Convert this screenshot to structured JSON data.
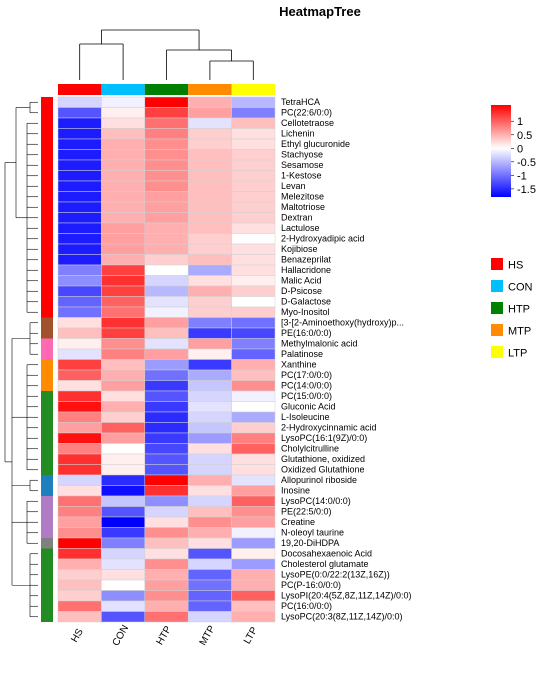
{
  "chart_data": {
    "type": "heatmap",
    "title": "HeatmapTree",
    "columns": [
      "HS",
      "CON",
      "HTP",
      "MTP",
      "LTP"
    ],
    "column_colors": [
      "#ff0000",
      "#00bfff",
      "#008000",
      "#ff8c00",
      "#ffff00"
    ],
    "rows": [
      "TetraHCA",
      "PC(22:6/0:0)",
      "Cellotetraose",
      "Lichenin",
      "Ethyl glucuronide",
      "Stachyose",
      "Sesamose",
      "1-Kestose",
      "Levan",
      "Melezitose",
      "Maltotriose",
      "Dextran",
      "Lactulose",
      "2-Hydroxyadipic acid",
      "Kojibiose",
      "Benazeprilat",
      "Hallacridone",
      "Malic Acid",
      "D-Psicose",
      "D-Galactose",
      "Myo-Inositol",
      "[3-[2-Aminoethoxy(hydroxy)p...",
      "PE(16:0/0:0)",
      "Methylmalonic acid",
      "Palatinose",
      "Xanthine",
      "PC(17:0/0:0)",
      "PC(14:0/0:0)",
      "PC(15:0/0:0)",
      "Gluconic Acid",
      "L-Isoleucine",
      "2-Hydroxycinnamic acid",
      "LysoPC(16:1(9Z)/0:0)",
      "Cholylcitrulline",
      "Glutathione, oxidized",
      "Oxidized Glutathione",
      "Allopurinol riboside",
      "Inosine",
      "LysoPC(14:0/0:0)",
      "PE(22:5/0:0)",
      "Creatine",
      "N-oleoyl taurine",
      "19,20-DiHDPA",
      "Docosahexaenoic Acid",
      "Cholesterol glutamate",
      "LysoPE(0:0/22:2(13Z,16Z))",
      "PC(P-16:0/0:0)",
      "LysoPI(20:4(5Z,8Z,11Z,14Z)/0:0)",
      "PC(16:0/0:0)",
      "LysoPC(20:3(8Z,11Z,14Z)/0:0)"
    ],
    "row_group_colors": [
      "#ff0000",
      "#ff0000",
      "#ff0000",
      "#ff0000",
      "#ff0000",
      "#ff0000",
      "#ff0000",
      "#ff0000",
      "#ff0000",
      "#ff0000",
      "#ff0000",
      "#ff0000",
      "#ff0000",
      "#ff0000",
      "#ff0000",
      "#ff0000",
      "#ff0000",
      "#ff0000",
      "#ff0000",
      "#ff0000",
      "#ff0000",
      "#a0522d",
      "#a0522d",
      "#ff69b4",
      "#ff69b4",
      "#ff8c00",
      "#ff8c00",
      "#ff8c00",
      "#228b22",
      "#228b22",
      "#228b22",
      "#228b22",
      "#228b22",
      "#228b22",
      "#228b22",
      "#228b22",
      "#1e7fbf",
      "#1e7fbf",
      "#b07cc6",
      "#b07cc6",
      "#b07cc6",
      "#b07cc6",
      "#808080",
      "#228b22",
      "#228b22",
      "#228b22",
      "#228b22",
      "#228b22",
      "#228b22",
      "#228b22"
    ],
    "values": [
      [
        -0.3,
        -0.1,
        1.6,
        0.5,
        -0.5
      ],
      [
        -1.2,
        0.1,
        1.2,
        0.6,
        -0.9
      ],
      [
        -1.6,
        0.2,
        0.9,
        -0.2,
        0.4
      ],
      [
        -1.6,
        0.4,
        0.8,
        0.3,
        0.2
      ],
      [
        -1.6,
        0.5,
        0.7,
        0.3,
        0.2
      ],
      [
        -1.6,
        0.5,
        0.7,
        0.4,
        0.3
      ],
      [
        -1.6,
        0.5,
        0.7,
        0.4,
        0.3
      ],
      [
        -1.6,
        0.5,
        0.7,
        0.4,
        0.3
      ],
      [
        -1.6,
        0.5,
        0.7,
        0.4,
        0.3
      ],
      [
        -1.6,
        0.5,
        0.6,
        0.4,
        0.3
      ],
      [
        -1.6,
        0.5,
        0.6,
        0.4,
        0.3
      ],
      [
        -1.6,
        0.5,
        0.6,
        0.4,
        0.3
      ],
      [
        -1.6,
        0.6,
        0.5,
        0.4,
        0.2
      ],
      [
        -1.6,
        0.6,
        0.5,
        0.3,
        0.0
      ],
      [
        -1.6,
        0.6,
        0.5,
        0.3,
        0.2
      ],
      [
        -1.6,
        0.5,
        0.3,
        0.4,
        0.2
      ],
      [
        -0.9,
        1.2,
        0.0,
        -0.6,
        0.2
      ],
      [
        -0.8,
        1.3,
        -0.3,
        0.2,
        0.1
      ],
      [
        -1.3,
        1.2,
        -0.5,
        0.5,
        0.3
      ],
      [
        -1.1,
        1.0,
        -0.2,
        0.3,
        0.0
      ],
      [
        -1.0,
        0.9,
        -0.1,
        0.3,
        0.3
      ],
      [
        0.2,
        1.3,
        0.6,
        -0.9,
        -1.0
      ],
      [
        0.4,
        1.2,
        0.4,
        -1.4,
        -1.3
      ],
      [
        0.1,
        0.7,
        -0.2,
        0.6,
        -0.9
      ],
      [
        -0.2,
        0.8,
        0.6,
        0.1,
        -1.1
      ],
      [
        1.2,
        0.4,
        -0.7,
        -1.4,
        0.5
      ],
      [
        1.0,
        0.5,
        -1.0,
        -0.6,
        0.4
      ],
      [
        0.2,
        0.6,
        -1.4,
        -0.4,
        0.7
      ],
      [
        1.3,
        0.2,
        -1.2,
        -0.3,
        -0.1
      ],
      [
        1.5,
        0.5,
        -1.4,
        -0.2,
        0.0
      ],
      [
        0.8,
        0.3,
        -1.5,
        -0.3,
        -0.6
      ],
      [
        0.6,
        1.0,
        -1.5,
        -0.4,
        0.3
      ],
      [
        1.5,
        0.6,
        -1.4,
        -0.7,
        0.8
      ],
      [
        0.8,
        0.0,
        -1.3,
        0.2,
        1.0
      ],
      [
        1.3,
        0.1,
        -1.2,
        -0.3,
        0.2
      ],
      [
        1.3,
        0.1,
        -1.2,
        -0.3,
        0.2
      ],
      [
        -0.3,
        -1.5,
        1.6,
        0.5,
        -0.2
      ],
      [
        0.2,
        -1.7,
        1.3,
        0.2,
        0.6
      ],
      [
        0.9,
        -0.4,
        -0.8,
        -0.3,
        1.0
      ],
      [
        0.8,
        -1.2,
        -0.3,
        0.4,
        0.7
      ],
      [
        0.6,
        -1.8,
        0.2,
        0.7,
        0.6
      ],
      [
        0.7,
        -1.4,
        0.7,
        0.5,
        -0.1
      ],
      [
        1.6,
        -0.9,
        0.4,
        0.2,
        -0.7
      ],
      [
        1.3,
        -0.3,
        0.2,
        -1.2,
        0.1
      ],
      [
        0.5,
        -0.2,
        0.7,
        -0.3,
        -0.7
      ],
      [
        0.3,
        0.2,
        0.5,
        -1.1,
        0.5
      ],
      [
        0.4,
        0.0,
        0.6,
        -1.0,
        0.5
      ],
      [
        0.3,
        -0.8,
        0.7,
        -1.1,
        1.0
      ],
      [
        0.9,
        -0.2,
        0.5,
        -1.1,
        0.4
      ],
      [
        0.4,
        -1.2,
        0.9,
        -0.3,
        0.5
      ]
    ],
    "colorbar": {
      "ticks": [
        1,
        0.5,
        0,
        -0.5,
        -1,
        -1.5
      ],
      "tick_labels": [
        "1",
        "0.5",
        "0",
        "-0.5",
        "-1",
        "-1.5"
      ],
      "range": [
        -1.8,
        1.6
      ],
      "colors": [
        "#0000ff",
        "#ffffff",
        "#ff0000"
      ]
    },
    "legend": [
      {
        "label": "HS",
        "color": "#ff0000"
      },
      {
        "label": "CON",
        "color": "#00bfff"
      },
      {
        "label": "HTP",
        "color": "#008000"
      },
      {
        "label": "MTP",
        "color": "#ff8c00"
      },
      {
        "label": "LTP",
        "color": "#ffff00"
      }
    ]
  }
}
